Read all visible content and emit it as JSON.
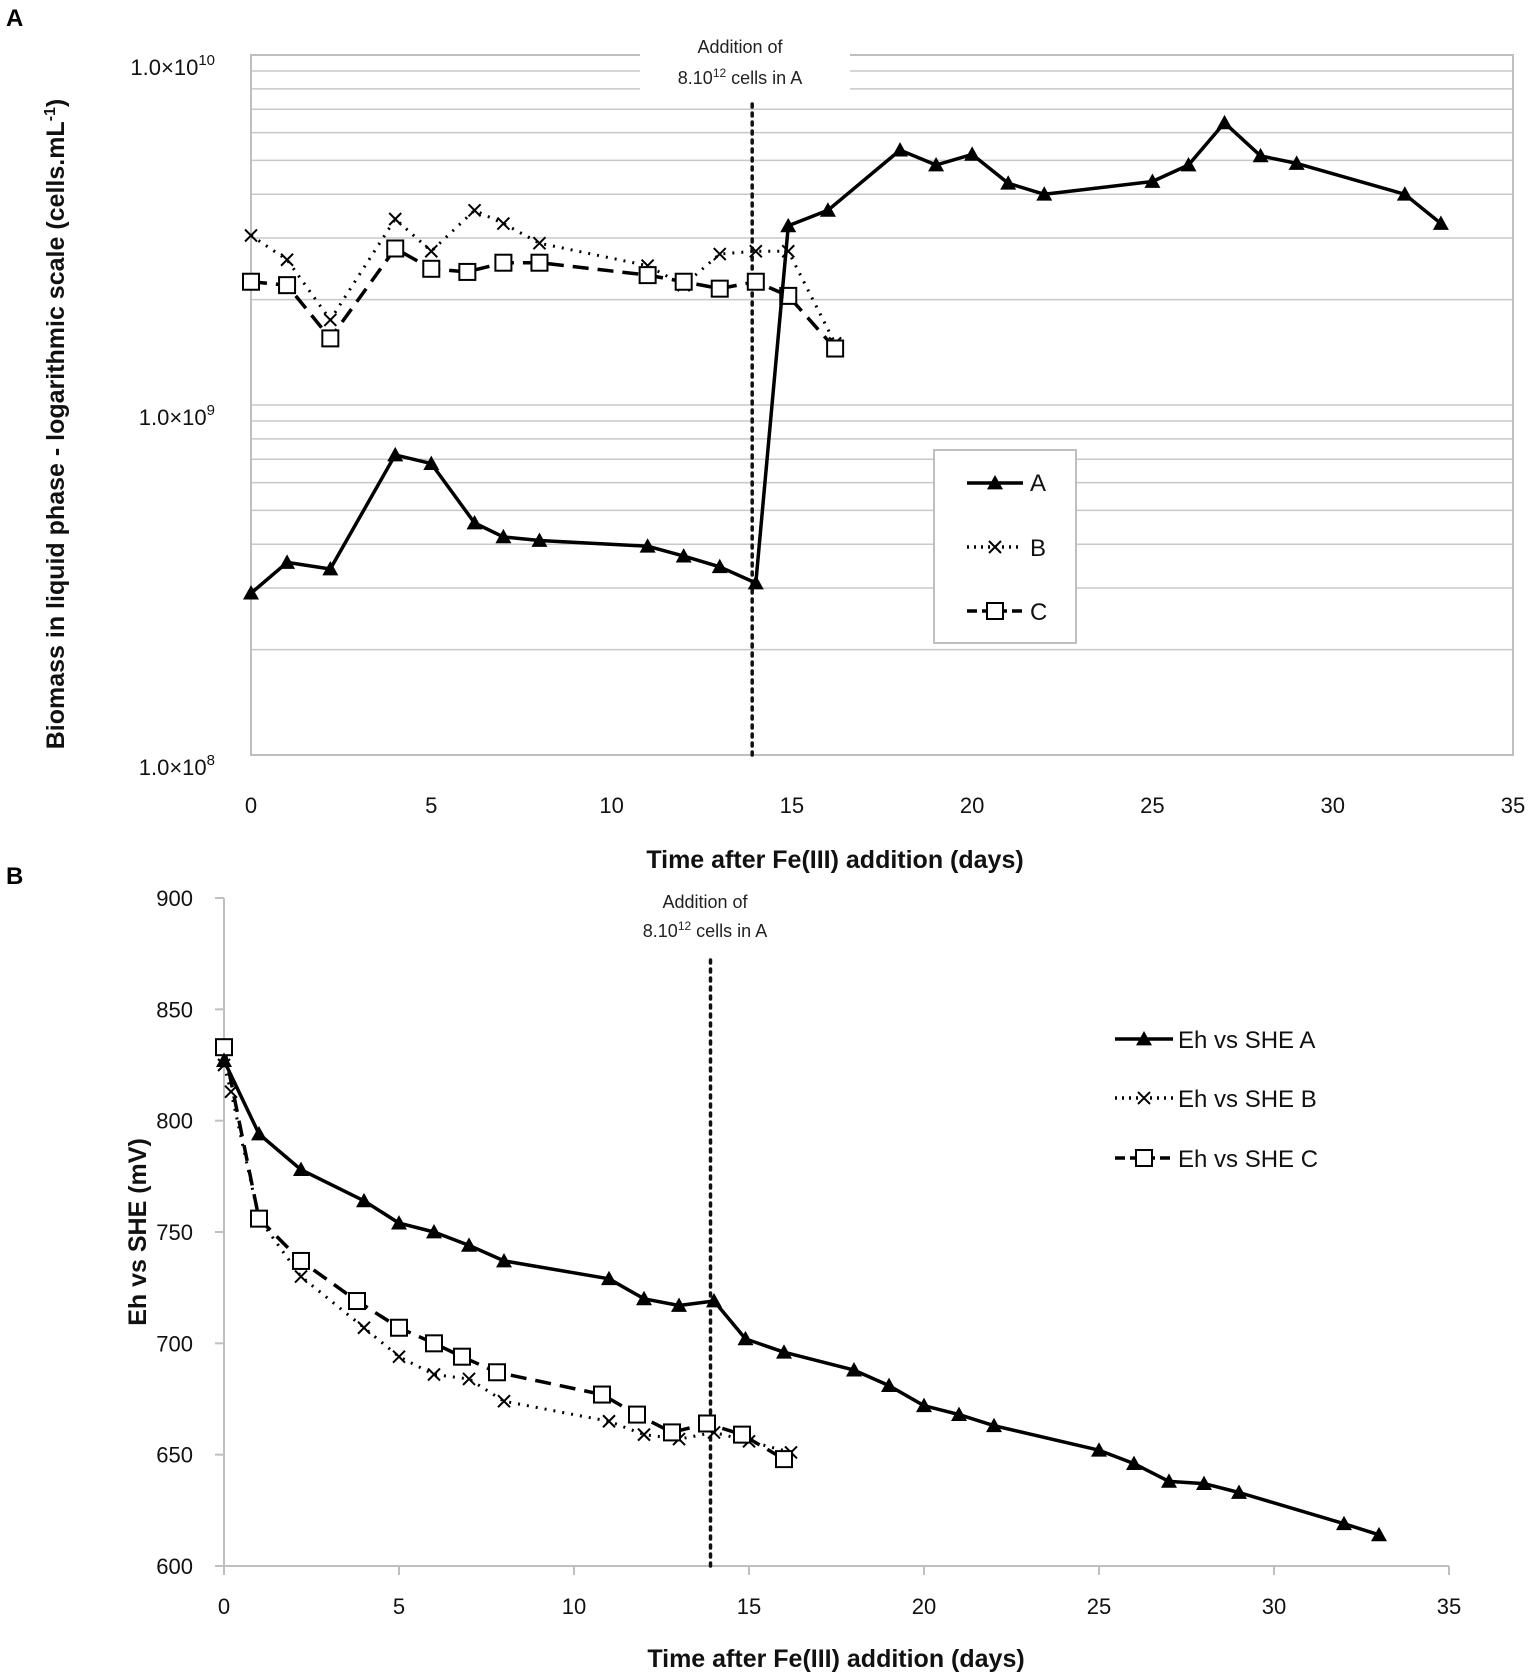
{
  "chart_data": [
    {
      "panel": "A",
      "type": "line",
      "yscale": "log",
      "title": "",
      "xlabel": "Time after Fe(III) addition (days)",
      "ylabel": "Biomass in liquid phase - logarithmic scale (cells.mL",
      "ylabel_sup": "-1",
      "ylabel_end": ")",
      "xlim": [
        0,
        35
      ],
      "ylim": [
        100000000,
        10000000000
      ],
      "xticks": [
        0,
        5,
        10,
        15,
        20,
        25,
        30,
        35
      ],
      "xtick_labels": [
        "0",
        "5",
        "10",
        "15",
        "20",
        "25",
        "30",
        "35"
      ],
      "yticks": [
        100000000,
        1000000000,
        10000000000
      ],
      "ytick_labels": [
        {
          "mant": "1.0×10",
          "exp": "8"
        },
        {
          "mant": "1.0×10",
          "exp": "9"
        },
        {
          "mant": "1.0×10",
          "exp": "10"
        }
      ],
      "grid": true,
      "legend_position": "center-right",
      "annotation": {
        "line1": "Addition of",
        "line2_pre": "8.10",
        "line2_sup": "12",
        "line2_post": " cells in A",
        "x": 13.9
      },
      "series": [
        {
          "name": "A",
          "marker": "triangle",
          "dash": "solid",
          "x": [
            0,
            1,
            2.2,
            4,
            5,
            6.2,
            7,
            8,
            11,
            12,
            13,
            14,
            14.9,
            16,
            18,
            19,
            20,
            21,
            22,
            25,
            26,
            27,
            28,
            29,
            32,
            33
          ],
          "y": [
            290000000,
            355000000,
            340000000,
            720000000,
            680000000,
            460000000,
            420000000,
            410000000,
            395000000,
            370000000,
            345000000,
            310000000,
            3250000000,
            3600000000,
            5350000000,
            4850000000,
            5200000000,
            4300000000,
            4000000000,
            4350000000,
            4850000000,
            6400000000,
            5150000000,
            4900000000,
            4000000000,
            3300000000
          ]
        },
        {
          "name": "B",
          "marker": "x",
          "dash": "dotted",
          "x": [
            0,
            1,
            2.2,
            4,
            5,
            6.2,
            7,
            8,
            11,
            12,
            13,
            14,
            14.9,
            16.2
          ],
          "y": [
            3050000000,
            2600000000,
            1750000000,
            3400000000,
            2750000000,
            3600000000,
            3300000000,
            2900000000,
            2500000000,
            2200000000,
            2700000000,
            2750000000,
            2750000000,
            1500000000
          ]
        },
        {
          "name": "C",
          "marker": "square",
          "dash": "dashed",
          "x": [
            0,
            1,
            2.2,
            4,
            5,
            6,
            7,
            8,
            11,
            12,
            13,
            14,
            14.9,
            16.2
          ],
          "y": [
            2250000000,
            2200000000,
            1550000000,
            2800000000,
            2450000000,
            2400000000,
            2550000000,
            2550000000,
            2350000000,
            2250000000,
            2150000000,
            2250000000,
            2050000000,
            1450000000
          ]
        }
      ]
    },
    {
      "panel": "B",
      "type": "line",
      "yscale": "linear",
      "title": "",
      "xlabel": "Time after Fe(III) addition (days)",
      "ylabel": "Eh vs SHE (mV)",
      "xlim": [
        0,
        35
      ],
      "ylim": [
        600,
        900
      ],
      "xticks": [
        0,
        5,
        10,
        15,
        20,
        25,
        30,
        35
      ],
      "xtick_labels": [
        "0",
        "5",
        "10",
        "15",
        "20",
        "25",
        "30",
        "35"
      ],
      "yticks": [
        600,
        650,
        700,
        750,
        800,
        850,
        900
      ],
      "ytick_labels": [
        "600",
        "650",
        "700",
        "750",
        "800",
        "850",
        "900"
      ],
      "grid": false,
      "legend_position": "top-right",
      "annotation": {
        "line1": "Addition of",
        "line2_pre": "8.10",
        "line2_sup": "12",
        "line2_post": " cells in A",
        "x": 13.9
      },
      "series": [
        {
          "name": "Eh vs SHE A",
          "marker": "triangle",
          "dash": "solid",
          "x": [
            0,
            1,
            2.2,
            4,
            5,
            6,
            7,
            8,
            11,
            12,
            13,
            14,
            14.9,
            16,
            18,
            19,
            20,
            21,
            22,
            25,
            26,
            27,
            28,
            29,
            32,
            33
          ],
          "y": [
            827,
            794,
            778,
            764,
            754,
            750,
            744,
            737,
            729,
            720,
            717,
            719,
            702,
            696,
            688,
            681,
            672,
            668,
            663,
            652,
            646,
            638,
            637,
            633,
            619,
            614
          ]
        },
        {
          "name": "Eh vs SHE B",
          "marker": "x",
          "dash": "dotted",
          "x": [
            0,
            0.2,
            1,
            2.2,
            4,
            5,
            6,
            7,
            8,
            11,
            12,
            13,
            14,
            15,
            16.2
          ],
          "y": [
            825,
            813,
            756,
            730,
            707,
            694,
            686,
            684,
            674,
            665,
            659,
            657,
            660,
            656,
            651
          ]
        },
        {
          "name": "Eh vs SHE C",
          "marker": "square",
          "dash": "dashed",
          "x": [
            0,
            1,
            2.2,
            3.8,
            5,
            6,
            6.8,
            7.8,
            10.8,
            11.8,
            12.8,
            13.8,
            14.8,
            16
          ],
          "y": [
            833,
            756,
            737,
            719,
            707,
            700,
            694,
            687,
            677,
            668,
            660,
            664,
            659,
            648
          ]
        }
      ]
    }
  ]
}
